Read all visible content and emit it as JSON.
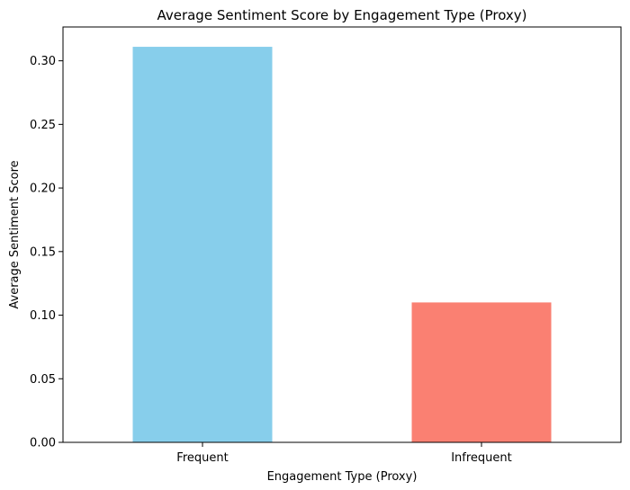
{
  "chart_data": {
    "type": "bar",
    "title": "Average Sentiment Score by Engagement Type (Proxy)",
    "xlabel": "Engagement Type (Proxy)",
    "ylabel": "Average Sentiment Score",
    "categories": [
      "Frequent",
      "Infrequent"
    ],
    "values": [
      0.311,
      0.11
    ],
    "colors": [
      "#87CEEB",
      "#FA8072"
    ],
    "ylim": [
      0,
      0.3266
    ],
    "yticks": [
      0.0,
      0.05,
      0.1,
      0.15,
      0.2,
      0.25,
      0.3
    ],
    "ytick_labels": [
      "0.00",
      "0.05",
      "0.10",
      "0.15",
      "0.20",
      "0.25",
      "0.30"
    ],
    "grid": false,
    "legend": "none"
  }
}
